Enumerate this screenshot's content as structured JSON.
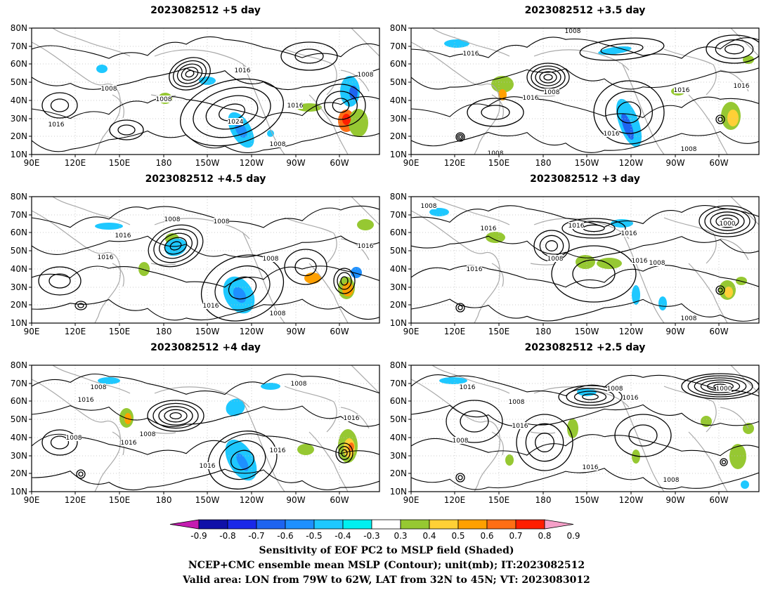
{
  "panels": [
    {
      "title": "2023082512 +5 day",
      "contour_labels": [
        "1016",
        "1008",
        "1008",
        "1016",
        "1024",
        "1016",
        "1008",
        "1008",
        "1016"
      ]
    },
    {
      "title": "2023082512 +3.5 day",
      "contour_labels": [
        "1008",
        "1016",
        "1008",
        "1016",
        "1016",
        "1016",
        "1016",
        "1008",
        "1008"
      ]
    },
    {
      "title": "2023082512 +4.5 day",
      "contour_labels": [
        "1008",
        "1008",
        "1016",
        "1016",
        "1016",
        "1008",
        "1008",
        "1016"
      ]
    },
    {
      "title": "2023082512 +3 day",
      "contour_labels": [
        "1008",
        "1016",
        "1016",
        "1008",
        "1000",
        "1016",
        "1016",
        "1008",
        "1008",
        "1016"
      ]
    },
    {
      "title": "2023082512 +4 day",
      "contour_labels": [
        "1008",
        "1016",
        "1008",
        "1008",
        "1016",
        "1016",
        "1016",
        "1016",
        "1008"
      ]
    },
    {
      "title": "2023082512 +2.5 day",
      "contour_labels": [
        "1016",
        "1008",
        "1016",
        "1008",
        "1016",
        "1008",
        "1000",
        "1016",
        "1008",
        "1016"
      ]
    }
  ],
  "lat_ticks": [
    "80N",
    "70N",
    "60N",
    "50N",
    "40N",
    "30N",
    "20N",
    "10N"
  ],
  "lon_ticks": [
    "90E",
    "120E",
    "150E",
    "180",
    "150W",
    "120W",
    "90W",
    "60W"
  ],
  "colorbar": {
    "labels": [
      "-0.9",
      "-0.8",
      "-0.7",
      "-0.6",
      "-0.5",
      "-0.4",
      "-0.3",
      "0.3",
      "0.4",
      "0.5",
      "0.6",
      "0.7",
      "0.8",
      "0.9"
    ],
    "colors": [
      "#c41cb0",
      "#1010a8",
      "#1a28e8",
      "#1e64f0",
      "#1e90ff",
      "#1ec8ff",
      "#00f0f0",
      "#ffffff",
      "#96c832",
      "#ffd036",
      "#ffa000",
      "#ff6e14",
      "#ff1e00",
      "#f5a0c8"
    ]
  },
  "caption": {
    "line1": "Sensitivity of EOF PC2 to MSLP field (Shaded)",
    "line2": "NCEP+CMC ensemble mean MSLP (Contour); unit(mb); IT:2023082512",
    "line3": "Valid area: LON from 79W to 62W, LAT from 32N to 45N; VT: 2023083012"
  }
}
